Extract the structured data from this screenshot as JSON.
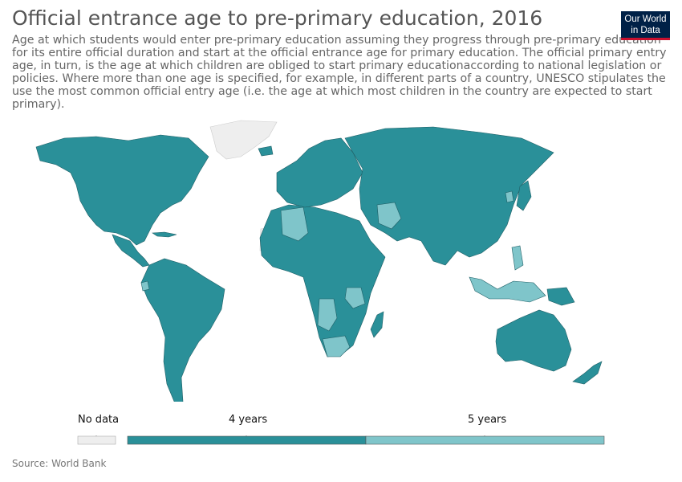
{
  "title": "Official entrance age to pre-primary education, 2016",
  "subtitle": "Age at which students would enter pre-primary education assuming they progress through pre-primary education for its entire official duration and start at the official entrance age for primary education. The official primary entry age, in turn, is the age at which children are obliged to start primary educationaccording to national legislation or policies. Where more than one age is specified, for example, in different parts of a country, UNESCO stipulates the use the most common official entry age (i.e. the age at which most children in the country are expected to start primary).",
  "logo": {
    "line1": "Our World",
    "line2": "in Data"
  },
  "legend": {
    "no_data_label": "No data",
    "bins": [
      {
        "label": "4 years",
        "color": "#2a9099"
      },
      {
        "label": "5 years",
        "color": "#7fc5ca"
      }
    ],
    "no_data_color": "#eeeeee"
  },
  "colors": {
    "four_years": "#2a9099",
    "five_years": "#7fc5ca",
    "no_data": "#eeeeee",
    "border": "#1e5f66"
  },
  "source": "Source: World Bank"
}
